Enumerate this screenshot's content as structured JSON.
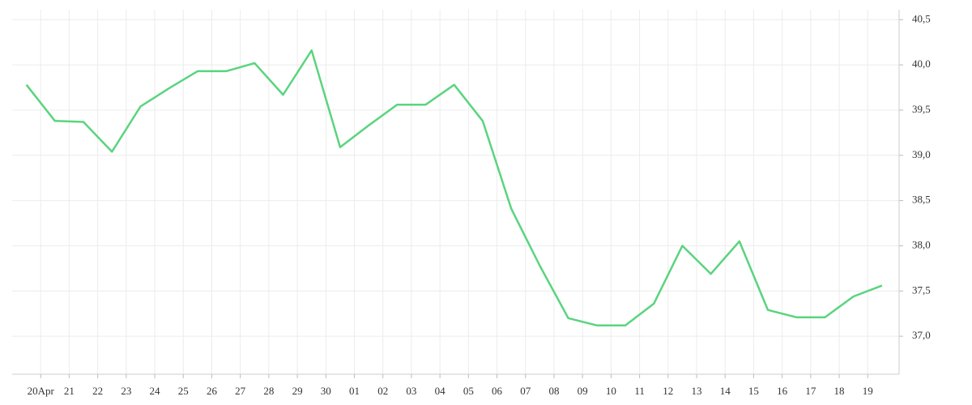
{
  "chart_data": {
    "type": "line",
    "x": [
      -0.5,
      0.5,
      1.5,
      2.5,
      3.5,
      4.5,
      5.5,
      6.5,
      7.5,
      8.5,
      9.5,
      10.5,
      11.5,
      12.5,
      13.5,
      14.5,
      15.5,
      16.5,
      17.5,
      18.5,
      19.5,
      20.5,
      21.5,
      22.5,
      23.5,
      24.5,
      25.5,
      26.5,
      27.5,
      28.5,
      29.5
    ],
    "values": [
      39.78,
      39.38,
      39.37,
      39.04,
      39.54,
      39.74,
      39.93,
      39.93,
      40.02,
      39.67,
      40.16,
      39.09,
      39.33,
      39.56,
      39.56,
      39.78,
      39.38,
      38.41,
      37.78,
      37.2,
      37.12,
      37.12,
      37.36,
      38.0,
      37.69,
      38.05,
      37.29,
      37.21,
      37.21,
      37.44,
      37.56
    ],
    "color": "#5ad47e",
    "xlim": [
      -1,
      30.1
    ],
    "xticks": [
      {
        "value": 0,
        "label": "20Apr"
      },
      {
        "value": 1,
        "label": "21"
      },
      {
        "value": 2,
        "label": "22"
      },
      {
        "value": 3,
        "label": "23"
      },
      {
        "value": 4,
        "label": "24"
      },
      {
        "value": 5,
        "label": "25"
      },
      {
        "value": 6,
        "label": "26"
      },
      {
        "value": 7,
        "label": "27"
      },
      {
        "value": 8,
        "label": "28"
      },
      {
        "value": 9,
        "label": "29"
      },
      {
        "value": 10,
        "label": "30"
      },
      {
        "value": 11,
        "label": "01"
      },
      {
        "value": 12,
        "label": "02"
      },
      {
        "value": 13,
        "label": "03"
      },
      {
        "value": 14,
        "label": "04"
      },
      {
        "value": 15,
        "label": "05"
      },
      {
        "value": 16,
        "label": "06"
      },
      {
        "value": 17,
        "label": "07"
      },
      {
        "value": 18,
        "label": "08"
      },
      {
        "value": 19,
        "label": "09"
      },
      {
        "value": 20,
        "label": "10"
      },
      {
        "value": 21,
        "label": "11"
      },
      {
        "value": 22,
        "label": "12"
      },
      {
        "value": 23,
        "label": "13"
      },
      {
        "value": 24,
        "label": "14"
      },
      {
        "value": 25,
        "label": "15"
      },
      {
        "value": 26,
        "label": "16"
      },
      {
        "value": 27,
        "label": "17"
      },
      {
        "value": 28,
        "label": "18"
      },
      {
        "value": 29,
        "label": "19"
      }
    ],
    "ylim": [
      36.58,
      40.61
    ],
    "yticks": [
      {
        "value": 37,
        "label": "37,0"
      },
      {
        "value": 37.5,
        "label": "37,5"
      },
      {
        "value": 38,
        "label": "38,0"
      },
      {
        "value": 38.5,
        "label": "38,5"
      },
      {
        "value": 39,
        "label": "39,0"
      },
      {
        "value": 39.5,
        "label": "39,5"
      },
      {
        "value": 40,
        "label": "40,0"
      },
      {
        "value": 40.5,
        "label": "40,5"
      }
    ],
    "grid": true
  }
}
